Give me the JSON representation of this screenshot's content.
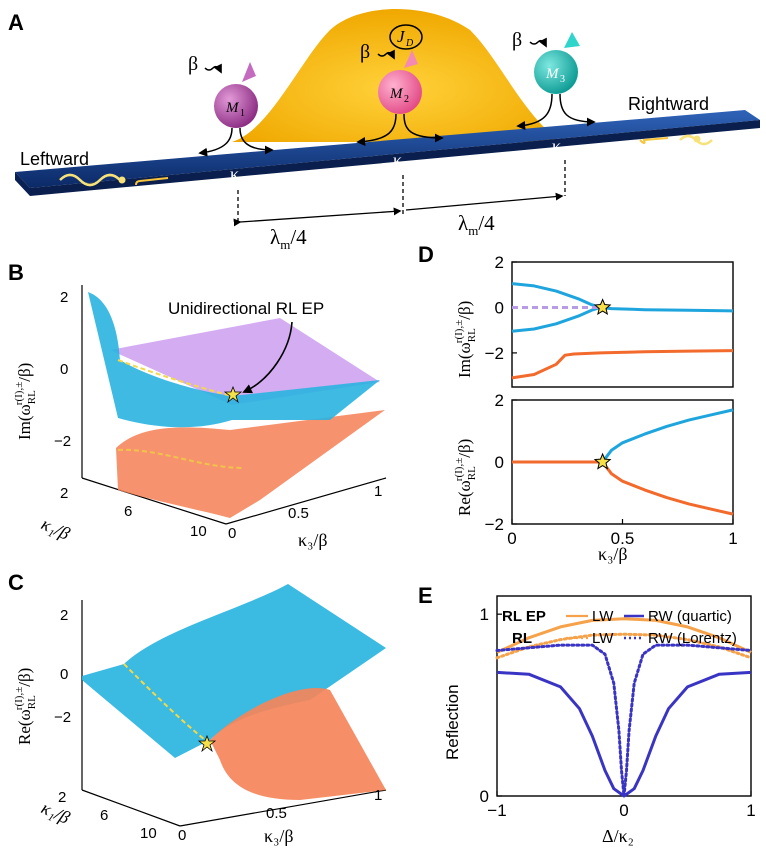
{
  "panels": {
    "A": {
      "label": "A",
      "beta": "β",
      "jd": "J",
      "jd_sub": "D",
      "magnets": [
        {
          "name": "M",
          "sub": "1",
          "color": "#b04aa8"
        },
        {
          "name": "M",
          "sub": "2",
          "color": "#f06aa0"
        },
        {
          "name": "M",
          "sub": "3",
          "color": "#1bbfb7"
        }
      ],
      "kappas": [
        {
          "k": "κ",
          "sub": "1"
        },
        {
          "k": "κ",
          "sub": "2"
        },
        {
          "k": "κ",
          "sub": "3"
        }
      ],
      "leftward": "Leftward",
      "rightward": "Rightward",
      "spacing": "λm/4",
      "spacing_main": "λ",
      "spacing_sub": "m",
      "spacing_tail": "/4"
    },
    "B": {
      "label": "B",
      "annotation": "Unidirectional RL EP",
      "zlabel": "Im(ω",
      "zlabel_sup": "r(I),±",
      "zlabel_sub": "RL",
      "zlabel_tail": "/β)",
      "z_ticks": [
        "2",
        "0",
        "−2"
      ],
      "k1_ticks": [
        "2",
        "6",
        "10"
      ],
      "k3_ticks": [
        "0",
        "0.5",
        "1"
      ],
      "k1_label": "κ₁/β",
      "k3_label": "κ₃/β"
    },
    "C": {
      "label": "C",
      "zlabel": "Re(ω",
      "zlabel_sup": "r(I),±",
      "zlabel_sub": "RL",
      "zlabel_tail": "/β)",
      "z_ticks": [
        "2",
        "0",
        "−2"
      ],
      "k1_ticks": [
        "2",
        "6",
        "10"
      ],
      "k3_ticks": [
        "0",
        "0.5",
        "1"
      ],
      "k1_label": "κ₁/β",
      "k3_label": "κ₃/β"
    },
    "D": {
      "label": "D",
      "top_ylabel": "Im(ω",
      "bottom_ylabel": "Re(ω",
      "ylabel_sup": "r(I),±",
      "ylabel_sub": "RL",
      "ylabel_tail": "/β)",
      "xlabel": "κ₃/β"
    },
    "E": {
      "label": "E",
      "ylabel": "Reflection",
      "xlabel": "Δ/κ₂",
      "legend": {
        "row1_title": "RL EP",
        "row2_title": "RL",
        "lw": "LW",
        "rw_quartic": "RW (quartic)",
        "rw_lorentz": "RW (Lorentz)"
      }
    }
  },
  "colors": {
    "blue": "#1fa5dd",
    "orange": "#f26a2c",
    "purple_dashed": "#b79be6",
    "lw_orange": "#f5a24a",
    "rw_blue": "#3a34c4",
    "star": "#f5e04a"
  },
  "chart_data": [
    {
      "id": "D-top",
      "type": "line",
      "title": "",
      "xlabel": "κ₃/β",
      "ylabel": "Im(ω_RL^{r(I),±}/β)",
      "xlim": [
        0,
        1
      ],
      "ylim": [
        -3.5,
        2
      ],
      "y_ticks": [
        -2,
        0,
        2
      ],
      "series": [
        {
          "name": "upper-blue",
          "color": "#1fa5dd",
          "x": [
            0,
            0.1,
            0.2,
            0.3,
            0.36,
            0.4,
            0.45,
            0.6,
            0.8,
            1.0
          ],
          "y": [
            1.05,
            0.95,
            0.72,
            0.38,
            0.12,
            0.0,
            -0.05,
            -0.1,
            -0.12,
            -0.15
          ]
        },
        {
          "name": "lower-blue",
          "color": "#1fa5dd",
          "x": [
            0,
            0.1,
            0.2,
            0.3,
            0.36,
            0.4
          ],
          "y": [
            -1.05,
            -0.95,
            -0.72,
            -0.38,
            -0.12,
            0.0
          ]
        },
        {
          "name": "flat-dashed",
          "color": "#b79be6",
          "x": [
            0,
            0.4
          ],
          "y": [
            0,
            0
          ]
        },
        {
          "name": "orange",
          "color": "#f26a2c",
          "x": [
            0,
            0.1,
            0.2,
            0.24,
            0.28,
            0.4,
            0.6,
            0.8,
            1.0
          ],
          "y": [
            -3.1,
            -2.95,
            -2.5,
            -2.1,
            -2.05,
            -2.0,
            -1.95,
            -1.92,
            -1.9
          ]
        }
      ],
      "annotations": [
        {
          "type": "star",
          "x": 0.41,
          "y": 0.0
        }
      ]
    },
    {
      "id": "D-bottom",
      "type": "line",
      "title": "",
      "xlabel": "κ₃/β",
      "ylabel": "Re(ω_RL^{r(I),±}/β)",
      "xlim": [
        0,
        1
      ],
      "ylim": [
        -2,
        2
      ],
      "x_ticks": [
        0,
        0.5,
        1
      ],
      "y_ticks": [
        -2,
        0,
        2
      ],
      "series": [
        {
          "name": "flat-orange",
          "color": "#f26a2c",
          "x": [
            0,
            0.41
          ],
          "y": [
            0,
            0
          ]
        },
        {
          "name": "upper-blue",
          "color": "#1fa5dd",
          "x": [
            0.41,
            0.45,
            0.5,
            0.6,
            0.7,
            0.8,
            0.9,
            1.0
          ],
          "y": [
            0,
            0.38,
            0.62,
            0.9,
            1.15,
            1.35,
            1.52,
            1.68
          ]
        },
        {
          "name": "lower-orange",
          "color": "#f26a2c",
          "x": [
            0.41,
            0.45,
            0.5,
            0.6,
            0.7,
            0.8,
            0.9,
            1.0
          ],
          "y": [
            0,
            -0.38,
            -0.62,
            -0.9,
            -1.15,
            -1.35,
            -1.52,
            -1.68
          ]
        }
      ],
      "annotations": [
        {
          "type": "star",
          "x": 0.41,
          "y": 0.0
        }
      ]
    },
    {
      "id": "E",
      "type": "line",
      "title": "",
      "xlabel": "Δ/κ₂",
      "ylabel": "Reflection",
      "xlim": [
        -1,
        1
      ],
      "ylim": [
        0,
        1.1
      ],
      "x_ticks": [
        -1,
        0,
        1
      ],
      "y_ticks": [
        0,
        1
      ],
      "series": [
        {
          "name": "RL EP LW",
          "style": "solid",
          "color": "#f5a24a",
          "x": [
            -1,
            -0.75,
            -0.5,
            -0.25,
            0,
            0.25,
            0.5,
            0.75,
            1
          ],
          "y": [
            0.79,
            0.87,
            0.93,
            0.966,
            0.975,
            0.966,
            0.93,
            0.87,
            0.79
          ]
        },
        {
          "name": "RW (quartic)",
          "style": "solid",
          "color": "#3a34c4",
          "x": [
            -1,
            -0.75,
            -0.5,
            -0.35,
            -0.25,
            -0.15,
            -0.08,
            0,
            0.08,
            0.15,
            0.25,
            0.35,
            0.5,
            0.75,
            1
          ],
          "y": [
            0.68,
            0.67,
            0.6,
            0.48,
            0.33,
            0.14,
            0.04,
            0.0,
            0.04,
            0.14,
            0.33,
            0.48,
            0.6,
            0.67,
            0.68
          ]
        },
        {
          "name": "RL LW",
          "style": "dotted",
          "color": "#f5a24a",
          "x": [
            -1,
            -0.75,
            -0.5,
            -0.25,
            0,
            0.25,
            0.5,
            0.75,
            1
          ],
          "y": [
            0.76,
            0.82,
            0.86,
            0.885,
            0.89,
            0.885,
            0.86,
            0.82,
            0.76
          ]
        },
        {
          "name": "RW (Lorentz)",
          "style": "dotted",
          "color": "#3a34c4",
          "x": [
            -1,
            -0.5,
            -0.25,
            -0.15,
            -0.08,
            -0.04,
            -0.02,
            0,
            0.02,
            0.04,
            0.08,
            0.15,
            0.25,
            0.5,
            1
          ],
          "y": [
            0.8,
            0.83,
            0.83,
            0.78,
            0.62,
            0.36,
            0.14,
            0.0,
            0.14,
            0.36,
            0.62,
            0.78,
            0.83,
            0.83,
            0.8
          ]
        }
      ],
      "legend": "top"
    }
  ]
}
